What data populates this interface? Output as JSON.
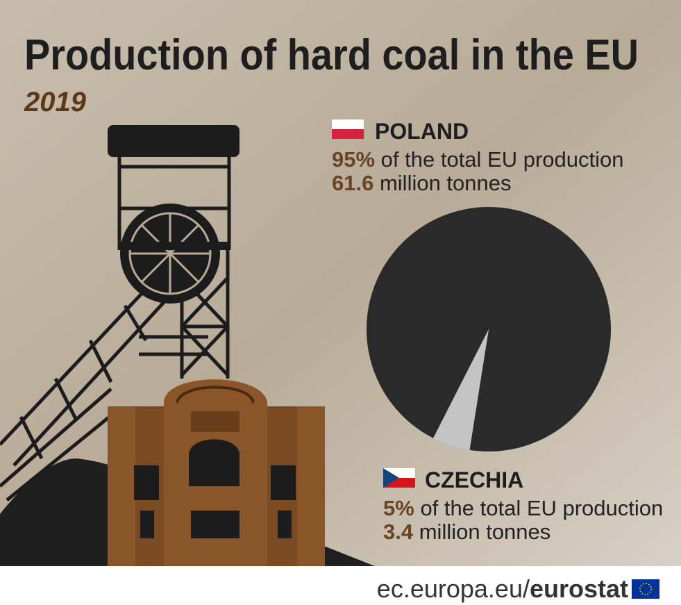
{
  "chart_data": {
    "type": "pie",
    "title": "Production of hard coal in the EU",
    "subtitle": "2019",
    "categories": [
      "POLAND",
      "CZECHIA"
    ],
    "values": [
      95,
      5
    ],
    "value_labels": [
      "95%",
      "5%"
    ],
    "colors": [
      "#2a2a2a",
      "#c4c4c4"
    ],
    "share_text": "of the total EU production",
    "amounts": [
      61.6,
      3.4
    ],
    "amount_unit": "million tonnes"
  },
  "footer": {
    "url": "ec.europa.eu/",
    "brand": "eurostat"
  }
}
